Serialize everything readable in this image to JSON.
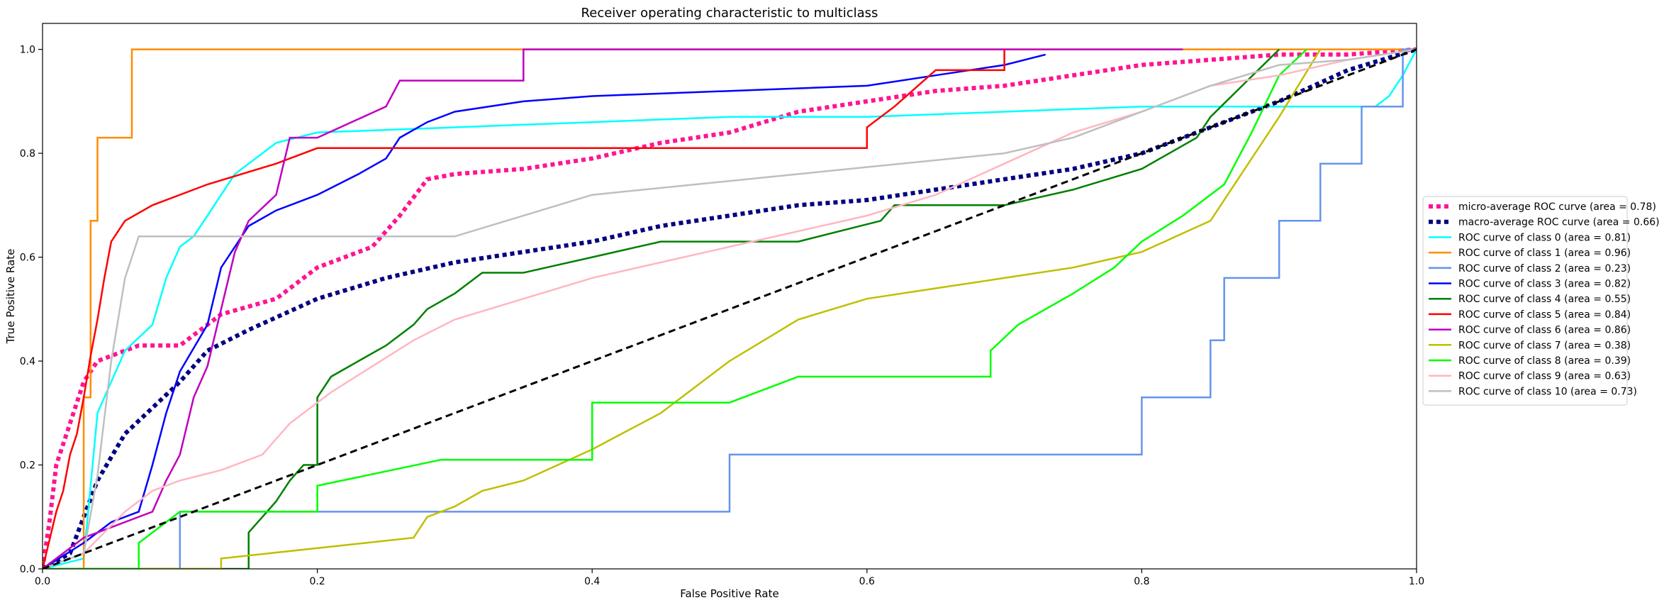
{
  "chart_data": {
    "type": "line",
    "title": "Receiver operating characteristic to multiclass",
    "xlabel": "False Positive Rate",
    "ylabel": "True Positive Rate",
    "xlim": [
      0.0,
      1.0
    ],
    "ylim": [
      0.0,
      1.05
    ],
    "xticks": [
      "0.0",
      "0.2",
      "0.4",
      "0.6",
      "0.8",
      "1.0"
    ],
    "yticks": [
      "0.0",
      "0.2",
      "0.4",
      "0.6",
      "0.8",
      "1.0"
    ],
    "grid": false,
    "legend_position": "center right, outside",
    "diagonal": {
      "x": [
        0,
        1
      ],
      "y": [
        0,
        1
      ],
      "color": "#000000",
      "style": "dashed"
    },
    "series": [
      {
        "name": "micro-average ROC curve (area = 0.78)",
        "color": "#ff1493",
        "style": "dotted",
        "width": "thick",
        "x": [
          0,
          0.005,
          0.01,
          0.02,
          0.03,
          0.04,
          0.05,
          0.07,
          0.1,
          0.13,
          0.17,
          0.2,
          0.24,
          0.26,
          0.28,
          0.3,
          0.35,
          0.4,
          0.45,
          0.5,
          0.55,
          0.6,
          0.65,
          0.7,
          0.75,
          0.8,
          0.85,
          0.9,
          0.95,
          1.0
        ],
        "y": [
          0,
          0.09,
          0.2,
          0.28,
          0.36,
          0.4,
          0.41,
          0.43,
          0.43,
          0.49,
          0.52,
          0.58,
          0.62,
          0.68,
          0.75,
          0.76,
          0.77,
          0.79,
          0.82,
          0.84,
          0.88,
          0.9,
          0.92,
          0.93,
          0.95,
          0.97,
          0.98,
          0.99,
          0.99,
          1.0
        ]
      },
      {
        "name": "macro-average ROC curve (area = 0.66)",
        "color": "#000080",
        "style": "dotted",
        "width": "thick",
        "x": [
          0,
          0.02,
          0.04,
          0.06,
          0.08,
          0.1,
          0.12,
          0.15,
          0.2,
          0.25,
          0.3,
          0.35,
          0.4,
          0.45,
          0.5,
          0.55,
          0.6,
          0.65,
          0.7,
          0.75,
          0.8,
          0.85,
          0.9,
          0.95,
          1.0
        ],
        "y": [
          0,
          0.03,
          0.17,
          0.26,
          0.31,
          0.36,
          0.42,
          0.46,
          0.52,
          0.56,
          0.59,
          0.61,
          0.63,
          0.66,
          0.68,
          0.7,
          0.71,
          0.73,
          0.75,
          0.77,
          0.8,
          0.85,
          0.9,
          0.96,
          1.0
        ]
      },
      {
        "name": "ROC curve of class 0 (area = 0.81)",
        "color": "#00ffff",
        "style": "solid",
        "x": [
          0,
          0.03,
          0.04,
          0.05,
          0.06,
          0.08,
          0.09,
          0.1,
          0.11,
          0.12,
          0.13,
          0.14,
          0.15,
          0.16,
          0.17,
          0.2,
          0.3,
          0.4,
          0.5,
          0.6,
          0.7,
          0.8,
          0.9,
          0.97,
          0.98,
          0.99,
          1.0
        ],
        "y": [
          0,
          0.02,
          0.3,
          0.36,
          0.42,
          0.47,
          0.56,
          0.62,
          0.64,
          0.68,
          0.72,
          0.76,
          0.78,
          0.8,
          0.82,
          0.84,
          0.85,
          0.86,
          0.87,
          0.87,
          0.88,
          0.89,
          0.89,
          0.89,
          0.91,
          0.95,
          1.0
        ]
      },
      {
        "name": "ROC curve of class 1 (area = 0.96)",
        "color": "#ff8c00",
        "style": "solid",
        "x": [
          0,
          0.02,
          0.03,
          0.03,
          0.035,
          0.035,
          0.04,
          0.04,
          0.065,
          0.065,
          1.0
        ],
        "y": [
          0,
          0,
          0,
          0.33,
          0.33,
          0.67,
          0.67,
          0.83,
          0.83,
          1.0,
          1.0
        ]
      },
      {
        "name": "ROC curve of class 2 (area = 0.23)",
        "color": "#6495ed",
        "style": "solid",
        "x": [
          0,
          0.1,
          0.1,
          0.5,
          0.5,
          0.8,
          0.8,
          0.85,
          0.85,
          0.86,
          0.86,
          0.9,
          0.9,
          0.93,
          0.93,
          0.96,
          0.96,
          0.99,
          0.99,
          1.0
        ],
        "y": [
          0,
          0,
          0.11,
          0.11,
          0.22,
          0.22,
          0.33,
          0.33,
          0.44,
          0.44,
          0.56,
          0.56,
          0.67,
          0.67,
          0.78,
          0.78,
          0.89,
          0.89,
          1.0,
          1.0
        ]
      },
      {
        "name": "ROC curve of class 3 (area = 0.82)",
        "color": "#0000ff",
        "style": "solid",
        "x": [
          0,
          0.03,
          0.05,
          0.07,
          0.08,
          0.09,
          0.1,
          0.12,
          0.13,
          0.14,
          0.15,
          0.17,
          0.2,
          0.23,
          0.25,
          0.26,
          0.28,
          0.3,
          0.35,
          0.4,
          0.5,
          0.6,
          0.65,
          0.7,
          0.73
        ],
        "y": [
          0,
          0.05,
          0.09,
          0.11,
          0.2,
          0.3,
          0.38,
          0.47,
          0.58,
          0.62,
          0.66,
          0.69,
          0.72,
          0.76,
          0.79,
          0.83,
          0.86,
          0.88,
          0.9,
          0.91,
          0.92,
          0.93,
          0.95,
          0.97,
          0.99
        ]
      },
      {
        "name": "ROC curve of class 4 (area = 0.55)",
        "color": "#008000",
        "style": "solid",
        "x": [
          0,
          0.15,
          0.15,
          0.16,
          0.17,
          0.18,
          0.19,
          0.2,
          0.2,
          0.21,
          0.23,
          0.25,
          0.27,
          0.28,
          0.3,
          0.32,
          0.35,
          0.4,
          0.45,
          0.5,
          0.55,
          0.61,
          0.62,
          0.7,
          0.75,
          0.8,
          0.82,
          0.84,
          0.85,
          0.9
        ],
        "y": [
          0,
          0,
          0.07,
          0.1,
          0.13,
          0.17,
          0.2,
          0.2,
          0.33,
          0.37,
          0.4,
          0.43,
          0.47,
          0.5,
          0.53,
          0.57,
          0.57,
          0.6,
          0.63,
          0.63,
          0.63,
          0.67,
          0.7,
          0.7,
          0.73,
          0.77,
          0.8,
          0.83,
          0.87,
          1.0
        ]
      },
      {
        "name": "ROC curve of class 5 (area = 0.84)",
        "color": "#ff0000",
        "style": "solid",
        "x": [
          0,
          0.01,
          0.015,
          0.02,
          0.025,
          0.03,
          0.035,
          0.04,
          0.045,
          0.05,
          0.06,
          0.08,
          0.12,
          0.17,
          0.2,
          0.6,
          0.6,
          0.62,
          0.65,
          0.7,
          0.7
        ],
        "y": [
          0,
          0.11,
          0.15,
          0.22,
          0.26,
          0.33,
          0.41,
          0.48,
          0.56,
          0.63,
          0.67,
          0.7,
          0.74,
          0.78,
          0.81,
          0.81,
          0.85,
          0.89,
          0.96,
          0.96,
          1.0
        ]
      },
      {
        "name": "ROC curve of class 6 (area = 0.86)",
        "color": "#bf00bf",
        "style": "solid",
        "x": [
          0,
          0.03,
          0.08,
          0.09,
          0.1,
          0.11,
          0.12,
          0.13,
          0.14,
          0.15,
          0.17,
          0.18,
          0.2,
          0.25,
          0.26,
          0.35,
          0.35,
          0.83
        ],
        "y": [
          0,
          0.06,
          0.11,
          0.17,
          0.22,
          0.33,
          0.39,
          0.5,
          0.61,
          0.67,
          0.72,
          0.83,
          0.83,
          0.89,
          0.94,
          0.94,
          1.0,
          1.0
        ]
      },
      {
        "name": "ROC curve of class 7 (area = 0.38)",
        "color": "#bfbf00",
        "style": "solid",
        "x": [
          0,
          0.13,
          0.13,
          0.27,
          0.28,
          0.3,
          0.32,
          0.35,
          0.4,
          0.45,
          0.5,
          0.55,
          0.6,
          0.65,
          0.7,
          0.75,
          0.8,
          0.85,
          0.9,
          0.93
        ],
        "y": [
          0,
          0,
          0.02,
          0.06,
          0.1,
          0.12,
          0.15,
          0.17,
          0.23,
          0.3,
          0.4,
          0.48,
          0.52,
          0.54,
          0.56,
          0.58,
          0.61,
          0.67,
          0.87,
          1.0
        ]
      },
      {
        "name": "ROC curve of class 8 (area = 0.39)",
        "color": "#00ff00",
        "style": "solid",
        "x": [
          0,
          0.07,
          0.07,
          0.1,
          0.2,
          0.2,
          0.29,
          0.4,
          0.4,
          0.5,
          0.55,
          0.69,
          0.69,
          0.71,
          0.75,
          0.78,
          0.8,
          0.83,
          0.86,
          0.88,
          0.9,
          0.92
        ],
        "y": [
          0,
          0,
          0.05,
          0.11,
          0.11,
          0.16,
          0.21,
          0.21,
          0.32,
          0.32,
          0.37,
          0.37,
          0.42,
          0.47,
          0.53,
          0.58,
          0.63,
          0.68,
          0.74,
          0.84,
          0.95,
          1.0
        ]
      },
      {
        "name": "ROC curve of class 9 (area = 0.63)",
        "color": "#ffb6c1",
        "style": "solid",
        "x": [
          0,
          0.03,
          0.06,
          0.08,
          0.1,
          0.13,
          0.16,
          0.18,
          0.21,
          0.24,
          0.27,
          0.3,
          0.35,
          0.4,
          0.45,
          0.5,
          0.55,
          0.6,
          0.65,
          0.7,
          0.75,
          0.8,
          0.85,
          0.9,
          0.95,
          1.0
        ],
        "y": [
          0,
          0.03,
          0.11,
          0.15,
          0.17,
          0.19,
          0.22,
          0.28,
          0.34,
          0.39,
          0.44,
          0.48,
          0.52,
          0.56,
          0.59,
          0.62,
          0.65,
          0.68,
          0.72,
          0.78,
          0.84,
          0.88,
          0.93,
          0.95,
          0.98,
          1.0
        ]
      },
      {
        "name": "ROC curve of class 10 (area = 0.73)",
        "color": "#bfbfbf",
        "style": "solid",
        "x": [
          0,
          0.03,
          0.04,
          0.05,
          0.06,
          0.07,
          0.3,
          0.4,
          0.55,
          0.7,
          0.75,
          0.8,
          0.85,
          0.9,
          0.95,
          1.0
        ],
        "y": [
          0,
          0.03,
          0.18,
          0.4,
          0.56,
          0.64,
          0.64,
          0.72,
          0.76,
          0.8,
          0.83,
          0.88,
          0.93,
          0.97,
          0.98,
          1.0
        ]
      }
    ]
  }
}
